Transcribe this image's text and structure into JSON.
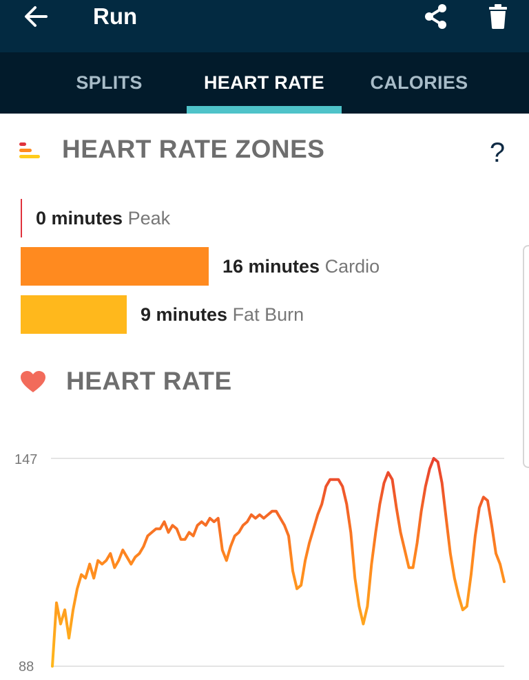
{
  "app_bar": {
    "title": "Run",
    "icons": {
      "back": "arrow-left-icon",
      "share": "share-icon",
      "delete": "trash-icon"
    },
    "color": "#032a41"
  },
  "tabs": {
    "items": [
      {
        "label": "SPLITS",
        "active": false
      },
      {
        "label": "HEART RATE",
        "active": true
      },
      {
        "label": "CALORIES",
        "active": false
      }
    ],
    "indicator_color": "#4fc3c9"
  },
  "zones": {
    "title": "HEART RATE ZONES",
    "help": "?",
    "items": [
      {
        "amount": "0 minutes",
        "label": "Peak",
        "minutes": 0,
        "color": "#e0323c"
      },
      {
        "amount": "16 minutes",
        "label": "Cardio",
        "minutes": 16,
        "color": "#ff8a1f"
      },
      {
        "amount": "9 minutes",
        "label": "Fat Burn",
        "minutes": 9,
        "color": "#ffb81c"
      }
    ]
  },
  "heart_rate": {
    "title": "HEART RATE",
    "icon": "heart-icon"
  },
  "chart_data": {
    "type": "line",
    "ylim": [
      88,
      147
    ],
    "ytick_labels": [
      "147",
      "88"
    ],
    "grid": true,
    "colors": [
      "#ffb81c",
      "#ff8a1f",
      "#e8402f"
    ],
    "series": [
      {
        "values": [
          88,
          106,
          100,
          104,
          96,
          104,
          110,
          114,
          113,
          117,
          113,
          118,
          117,
          118,
          120,
          116,
          118,
          121,
          119,
          117,
          119,
          120,
          122,
          125,
          126,
          127,
          127,
          129,
          126,
          128,
          127,
          124,
          124,
          126,
          125,
          128,
          129,
          128,
          130,
          129,
          130,
          121,
          118,
          122,
          125,
          126,
          128,
          129,
          131,
          130,
          131,
          130,
          131,
          132,
          132,
          130,
          128,
          125,
          115,
          110,
          111,
          118,
          123,
          127,
          131,
          134,
          139,
          141,
          141,
          141,
          139,
          134,
          126,
          113,
          105,
          100,
          105,
          117,
          126,
          134,
          140,
          143,
          141,
          133,
          126,
          121,
          116,
          116,
          123,
          132,
          139,
          144,
          147,
          146,
          140,
          130,
          120,
          113,
          108,
          104,
          105,
          114,
          125,
          133,
          136,
          135,
          128,
          120,
          117,
          112
        ]
      }
    ]
  }
}
